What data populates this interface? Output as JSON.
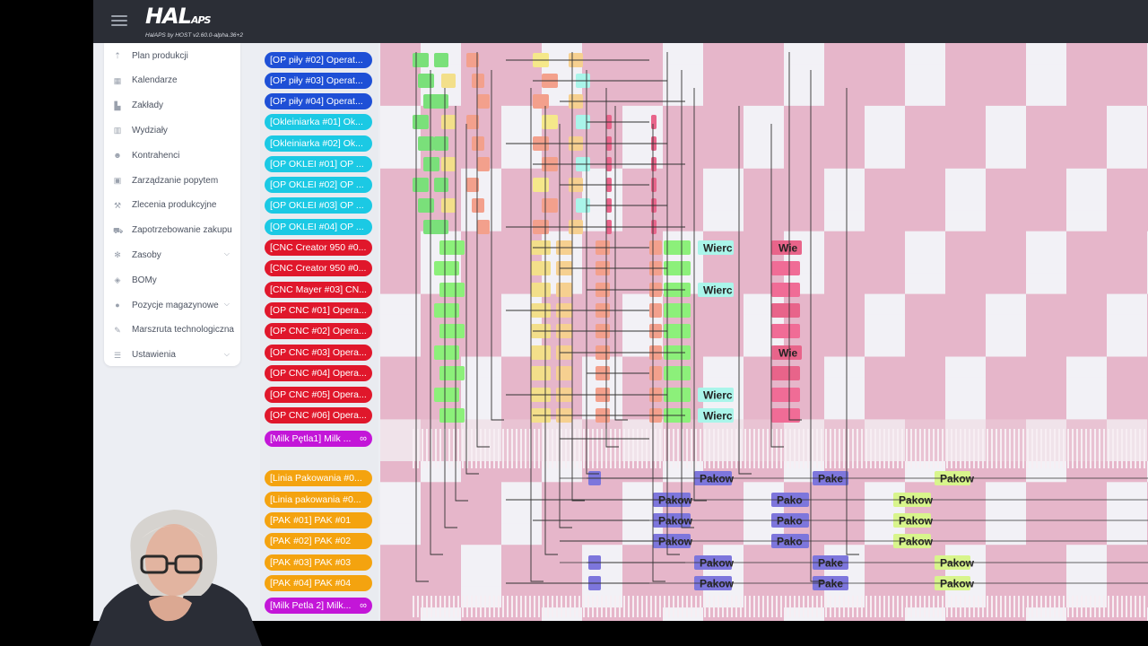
{
  "app": {
    "logo_text": "HAL",
    "logo_small": "APS",
    "version": "HalAPS by HOST v2.60.0-alpha.36+2"
  },
  "sidebar": {
    "items": [
      {
        "label": "Plan produkcji",
        "icon": "pin-icon",
        "glyph": "⇡",
        "chevron": false
      },
      {
        "label": "Kalendarze",
        "icon": "calendar-icon",
        "glyph": "▦",
        "chevron": false
      },
      {
        "label": "Zakłady",
        "icon": "factory-icon",
        "glyph": "▙",
        "chevron": false
      },
      {
        "label": "Wydziały",
        "icon": "building-icon",
        "glyph": "▥",
        "chevron": false
      },
      {
        "label": "Kontrahenci",
        "icon": "people-icon",
        "glyph": "☻",
        "chevron": false
      },
      {
        "label": "Zarządzanie popytem",
        "icon": "box-icon",
        "glyph": "▣",
        "chevron": false
      },
      {
        "label": "Zlecenia produkcyjne",
        "icon": "hammer-icon",
        "glyph": "⚒",
        "chevron": false
      },
      {
        "label": "Zapotrzebowanie zakupu",
        "icon": "cart-icon",
        "glyph": "⛟",
        "chevron": false
      },
      {
        "label": "Zasoby",
        "icon": "gear-icon",
        "glyph": "✻",
        "chevron": true
      },
      {
        "label": "BOMy",
        "icon": "layers-icon",
        "glyph": "◈",
        "chevron": false
      },
      {
        "label": "Pozycje magazynowe",
        "icon": "bulb-icon",
        "glyph": "●",
        "chevron": true
      },
      {
        "label": "Marszruta technologiczna",
        "icon": "wrench-icon",
        "glyph": "✎",
        "chevron": false
      },
      {
        "label": "Ustawienia",
        "icon": "sliders-icon",
        "glyph": "☰",
        "chevron": true
      }
    ]
  },
  "resources": [
    {
      "label": "[OP piły #02] Operat...",
      "color": "#1e4fd6",
      "infinity": false
    },
    {
      "label": "[OP piły #03] Operat...",
      "color": "#1e4fd6",
      "infinity": false
    },
    {
      "label": "[OP piły #04] Operat...",
      "color": "#1e4fd6",
      "infinity": false
    },
    {
      "label": "[Okleiniarka #01] Ok...",
      "color": "#1bc9e4",
      "infinity": false
    },
    {
      "label": "[Okleiniarka #02] Ok...",
      "color": "#1bc9e4",
      "infinity": false
    },
    {
      "label": "[OP OKLEI #01] OP ...",
      "color": "#1bc9e4",
      "infinity": false
    },
    {
      "label": "[OP OKLEI #02] OP ...",
      "color": "#1bc9e4",
      "infinity": false
    },
    {
      "label": "[OP OKLEI #03] OP ...",
      "color": "#1bc9e4",
      "infinity": false
    },
    {
      "label": "[OP OKLEI #04] OP ...",
      "color": "#1bc9e4",
      "infinity": false
    },
    {
      "label": "[CNC Creator 950 #0...",
      "color": "#e0172b",
      "infinity": false
    },
    {
      "label": "[CNC Creator 950 #0...",
      "color": "#e0172b",
      "infinity": false
    },
    {
      "label": "[CNC Mayer #03] CN...",
      "color": "#e0172b",
      "infinity": false
    },
    {
      "label": "[OP CNC #01] Opera...",
      "color": "#e0172b",
      "infinity": false
    },
    {
      "label": "[OP CNC #02] Opera...",
      "color": "#e0172b",
      "infinity": false
    },
    {
      "label": "[OP CNC #03] Opera...",
      "color": "#e0172b",
      "infinity": false
    },
    {
      "label": "[OP CNC #04] Opera...",
      "color": "#e0172b",
      "infinity": false
    },
    {
      "label": "[OP CNC #05] Opera...",
      "color": "#e0172b",
      "infinity": false
    },
    {
      "label": "[OP CNC #06] Opera...",
      "color": "#e0172b",
      "infinity": false
    },
    {
      "label": "[Milk Pętla1] Milk ...",
      "color": "#c316d8",
      "infinity": true
    },
    {
      "label": "[Linia Pakowania #0...",
      "color": "#f4a30f",
      "infinity": false
    },
    {
      "label": "[Linia pakowania #0...",
      "color": "#f4a30f",
      "infinity": false
    },
    {
      "label": "[PAK #01] PAK #01",
      "color": "#f4a30f",
      "infinity": false
    },
    {
      "label": "[PAK #02] PAK #02",
      "color": "#f4a30f",
      "infinity": false
    },
    {
      "label": "[PAK #03] PAK #03",
      "color": "#f4a30f",
      "infinity": false
    },
    {
      "label": "[PAK #04] PAK #04",
      "color": "#f4a30f",
      "infinity": false
    },
    {
      "label": "[Milk Petla 2] Milk...",
      "color": "#c316d8",
      "infinity": true
    }
  ],
  "infinity_symbol": "∞",
  "task_labels": {
    "wierc": "Wierc",
    "wie": "Wie",
    "pakow": "Pakow",
    "pako": "Pako",
    "pake": "Pake"
  },
  "colors": {
    "topbar": "#2b2e36",
    "offshift": "#e6b6ca",
    "workshift": "#f2f1f6",
    "saw_op": "#7ae07a",
    "edge_op": "#f3a08c",
    "cnc_op": "#8cf07a",
    "drill": "#aaf5ea",
    "drill_alt": "#e8648a",
    "pack": "#7d76dc",
    "pack_alt": "#d8f58c"
  }
}
